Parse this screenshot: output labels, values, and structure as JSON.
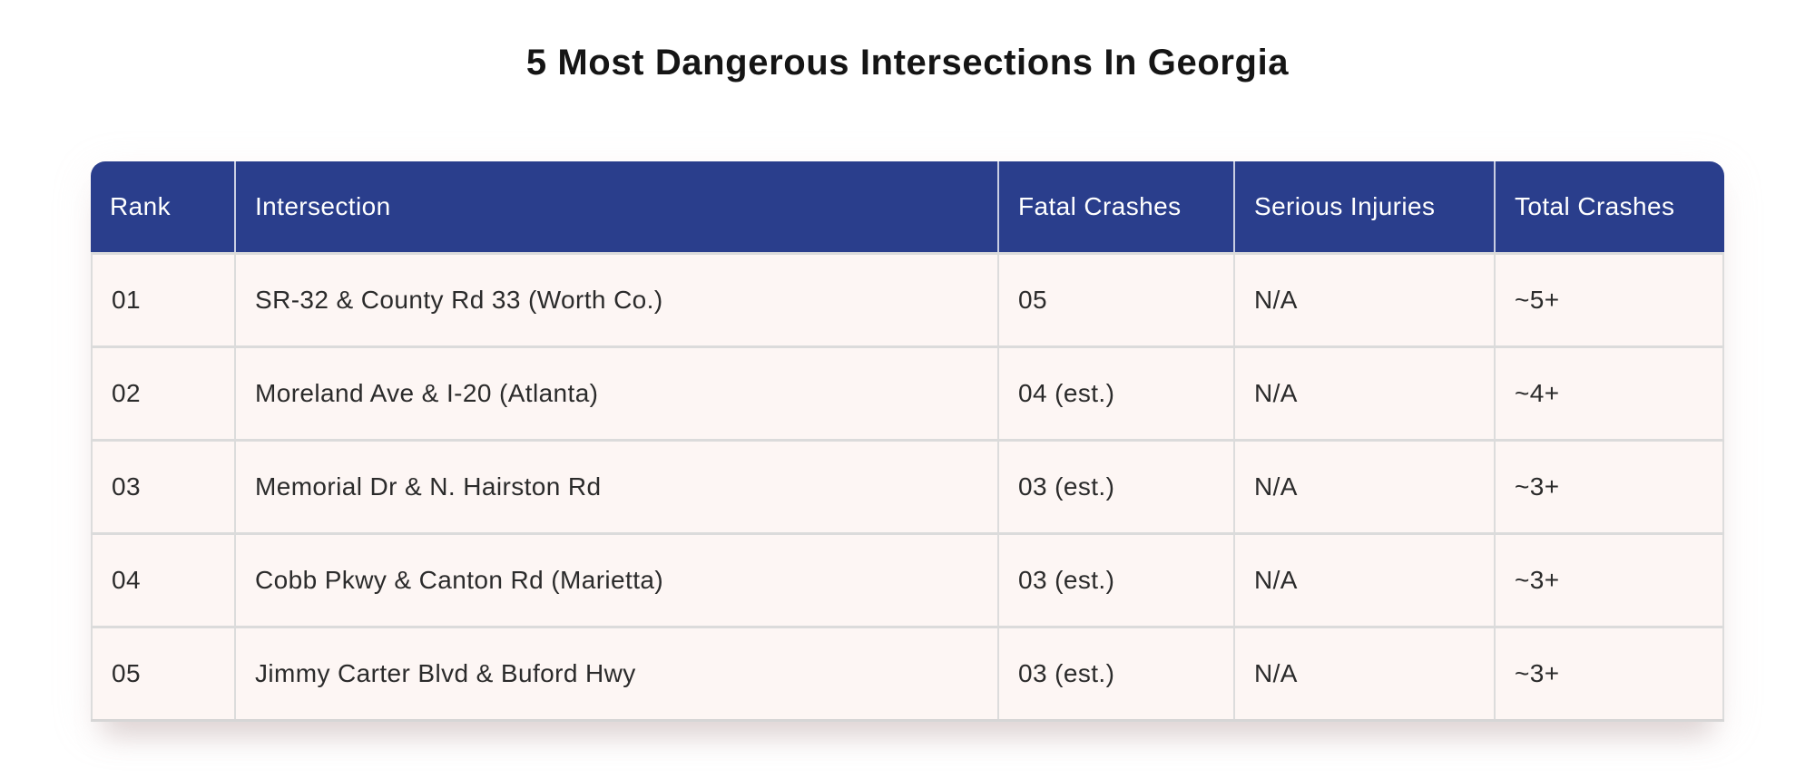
{
  "page": {
    "title": "5 Most Dangerous Intersections In Georgia"
  },
  "colors": {
    "header_bg": "#2A3E8C",
    "header_text": "#FFFFFF",
    "row_bg": "#FDF6F4",
    "grid_line": "#DBDBDB",
    "body_text": "#2B2B2B",
    "title_text": "#151515"
  },
  "chart_data": {
    "type": "table",
    "title": "5 Most Dangerous Intersections In Georgia",
    "columns": [
      "Rank",
      "Intersection",
      "Fatal Crashes",
      "Serious Injuries",
      "Total Crashes"
    ],
    "rows": [
      [
        "01",
        "SR-32 & County Rd 33 (Worth Co.)",
        "05",
        "N/A",
        "~5+"
      ],
      [
        "02",
        "Moreland Ave & I-20 (Atlanta)",
        "04 (est.)",
        "N/A",
        "~4+"
      ],
      [
        "03",
        "Memorial Dr & N. Hairston Rd",
        "03 (est.)",
        "N/A",
        "~3+"
      ],
      [
        "04",
        "Cobb Pkwy & Canton Rd (Marietta)",
        "03 (est.)",
        "N/A",
        "~3+"
      ],
      [
        "05",
        "Jimmy Carter Blvd & Buford Hwy",
        "03 (est.)",
        "N/A",
        "~3+"
      ]
    ],
    "layout_hints": {
      "header_style": "solid navy band, rounded top corners",
      "row_style": "pale pink rows separated by light gray rules",
      "grid": "vertical and horizontal light gray lines"
    }
  }
}
